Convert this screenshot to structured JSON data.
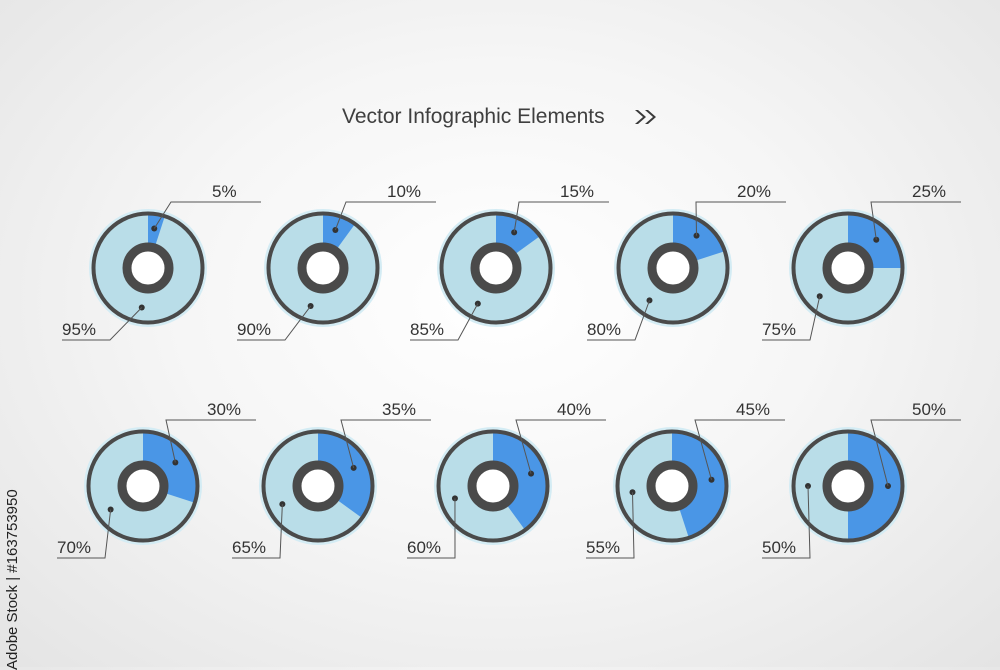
{
  "title": "Vector Infographic Elements",
  "side_credit": "Adobe Stock | #163753950",
  "colors": {
    "accent": "#4a96e6",
    "base": "#b9dde8",
    "outline": "#4a4a4a",
    "halo": "#d4ecf4"
  },
  "chart_data": [
    {
      "type": "pie",
      "values": [
        5,
        95
      ],
      "labels": [
        "5%",
        "95%"
      ]
    },
    {
      "type": "pie",
      "values": [
        10,
        90
      ],
      "labels": [
        "10%",
        "90%"
      ]
    },
    {
      "type": "pie",
      "values": [
        15,
        85
      ],
      "labels": [
        "15%",
        "85%"
      ]
    },
    {
      "type": "pie",
      "values": [
        20,
        80
      ],
      "labels": [
        "20%",
        "80%"
      ]
    },
    {
      "type": "pie",
      "values": [
        25,
        75
      ],
      "labels": [
        "25%",
        "75%"
      ]
    },
    {
      "type": "pie",
      "values": [
        30,
        70
      ],
      "labels": [
        "30%",
        "70%"
      ]
    },
    {
      "type": "pie",
      "values": [
        35,
        65
      ],
      "labels": [
        "35%",
        "65%"
      ]
    },
    {
      "type": "pie",
      "values": [
        40,
        60
      ],
      "labels": [
        "40%",
        "60%"
      ]
    },
    {
      "type": "pie",
      "values": [
        45,
        55
      ],
      "labels": [
        "45%",
        "55%"
      ]
    },
    {
      "type": "pie",
      "values": [
        50,
        50
      ],
      "labels": [
        "50%",
        "50%"
      ]
    }
  ]
}
